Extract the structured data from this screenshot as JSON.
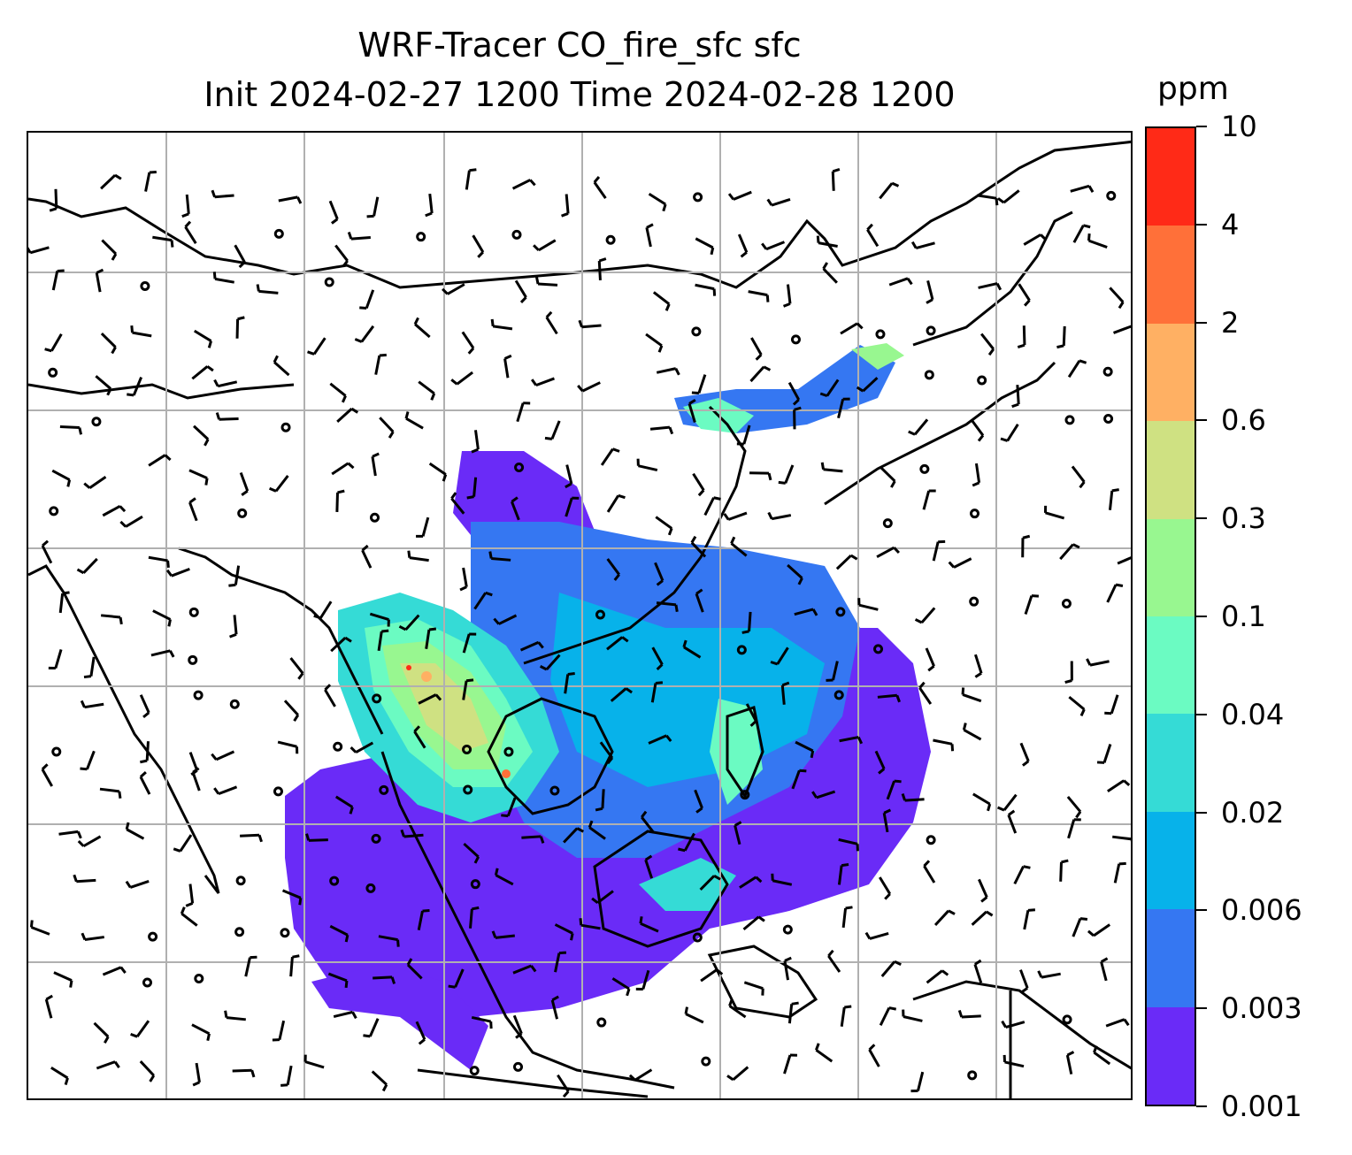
{
  "title": {
    "line1": "WRF-Tracer CO_fire_sfc sfc",
    "line2": "Init 2024-02-27 1200 Time 2024-02-28 1200"
  },
  "colorbar": {
    "unit": "ppm",
    "ticks": [
      "0.001",
      "0.003",
      "0.006",
      "0.02",
      "0.04",
      "0.1",
      "0.3",
      "0.6",
      "2",
      "4",
      "10"
    ],
    "colors": [
      "#6a2bf7",
      "#3577f2",
      "#07b2ea",
      "#35dbd6",
      "#6bfbc2",
      "#98f790",
      "#cfe182",
      "#ffb063",
      "#ff7039",
      "#ff2a17"
    ]
  },
  "map": {
    "gridlines": true,
    "land_line_color": "#000000",
    "wind_barbs": true,
    "calm_circles": true
  },
  "chart_data": {
    "type": "heatmap",
    "title": "WRF-Tracer CO_fire_sfc sfc",
    "subtitle": "Init 2024-02-27 1200 Time 2024-02-28 1200",
    "colorbar_label": "ppm",
    "levels": [
      0.001,
      0.003,
      0.006,
      0.02,
      0.04,
      0.1,
      0.3,
      0.6,
      2,
      4,
      10
    ]
  }
}
